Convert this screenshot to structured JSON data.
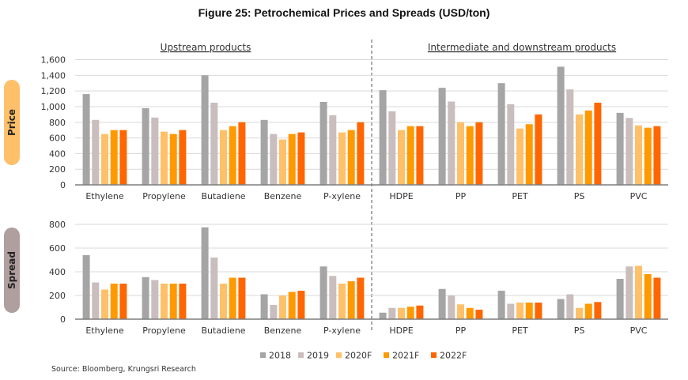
{
  "chart_data": {
    "type": "bar",
    "title": "Figure 25: Petrochemical Prices and Spreads (USD/ton)",
    "sections": [
      "Upstream products",
      "Intermediate and downstream products"
    ],
    "categories": [
      "Ethylene",
      "Propylene",
      "Butadiene",
      "Benzene",
      "P-xylene",
      "HDPE",
      "PP",
      "PET",
      "PS",
      "PVC"
    ],
    "series_names": [
      "2018",
      "2019",
      "2020F",
      "2021F",
      "2022F"
    ],
    "series_colors": [
      "#A5A5A5",
      "#C9BDBD",
      "#FFC06A",
      "#FF9900",
      "#FF6600"
    ],
    "panels": [
      {
        "name": "Price",
        "pill_color": "#FFC06A",
        "ylim": [
          0,
          1600
        ],
        "yticks": [
          0,
          200,
          400,
          600,
          800,
          1000,
          1200,
          1400,
          1600
        ],
        "ytick_labels": [
          "0",
          "200",
          "400",
          "600",
          "800",
          "1,000",
          "1,200",
          "1,400",
          "1,600"
        ],
        "grid": true,
        "series": [
          {
            "name": "2018",
            "values": [
              1160,
              980,
              1400,
              830,
              1060,
              1210,
              1240,
              1300,
              1510,
              920
            ]
          },
          {
            "name": "2019",
            "values": [
              830,
              860,
              1050,
              650,
              890,
              940,
              1065,
              1030,
              1220,
              855
            ]
          },
          {
            "name": "2020F",
            "values": [
              650,
              680,
              700,
              580,
              670,
              700,
              800,
              720,
              900,
              760
            ]
          },
          {
            "name": "2021F",
            "values": [
              700,
              650,
              750,
              650,
              700,
              750,
              750,
              775,
              950,
              730
            ]
          },
          {
            "name": "2022F",
            "values": [
              700,
              700,
              800,
              670,
              800,
              750,
              800,
              900,
              1050,
              750
            ]
          }
        ]
      },
      {
        "name": "Spread",
        "pill_color": "#B09F9F",
        "ylim": [
          0,
          800
        ],
        "yticks": [
          0,
          200,
          400,
          600,
          800
        ],
        "ytick_labels": [
          "0",
          "200",
          "400",
          "600",
          "800"
        ],
        "grid": true,
        "series": [
          {
            "name": "2018",
            "values": [
              540,
              355,
              775,
              210,
              445,
              55,
              255,
              240,
              170,
              340
            ]
          },
          {
            "name": "2019",
            "values": [
              310,
              330,
              520,
              120,
              365,
              95,
              200,
              130,
              210,
              445
            ]
          },
          {
            "name": "2020F",
            "values": [
              250,
              300,
              300,
              200,
              300,
              95,
              125,
              140,
              95,
              450
            ]
          },
          {
            "name": "2021F",
            "values": [
              300,
              300,
              350,
              230,
              320,
              105,
              95,
              140,
              130,
              380
            ]
          },
          {
            "name": "2022F",
            "values": [
              300,
              300,
              350,
              240,
              350,
              115,
              80,
              140,
              145,
              350
            ]
          }
        ]
      }
    ],
    "legend_position": "bottom-center",
    "source": "Source: Bloomberg, Krungsri Research"
  }
}
